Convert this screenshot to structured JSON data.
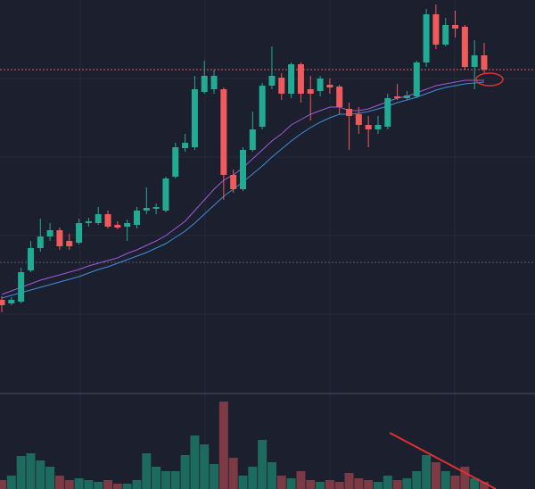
{
  "chart_data": {
    "type": "candlestick",
    "categories": [
      null,
      null,
      null,
      null,
      null,
      null,
      null,
      null,
      null,
      null,
      null,
      null,
      null,
      null,
      null,
      null,
      null,
      null,
      null,
      null,
      null,
      null,
      null,
      null,
      null,
      null,
      null,
      null,
      null,
      null,
      null,
      null,
      null,
      null,
      null,
      null,
      null,
      null,
      null,
      null,
      null,
      null,
      null,
      null,
      null,
      null,
      null,
      null,
      null,
      null,
      null
    ],
    "open": [
      104,
      100,
      102,
      137,
      162,
      175,
      182,
      170,
      168,
      190,
      190,
      200,
      188,
      186,
      188,
      204,
      206,
      204,
      242,
      274,
      275,
      337,
      340,
      340,
      244,
      228,
      272,
      298,
      344,
      353,
      335,
      368,
      340,
      338,
      345,
      343,
      318,
      312,
      300,
      295,
      298,
      332,
      330,
      332,
      370,
      424,
      390,
      412,
      410,
      365,
      378
    ],
    "high": [
      108,
      107,
      140,
      170,
      195,
      190,
      185,
      178,
      195,
      196,
      208,
      204,
      192,
      194,
      208,
      230,
      212,
      242,
      280,
      290,
      355,
      372,
      362,
      342,
      250,
      275,
      315,
      347,
      388,
      358,
      370,
      370,
      355,
      355,
      352,
      345,
      325,
      320,
      310,
      310,
      335,
      346,
      338,
      372,
      430,
      435,
      420,
      428,
      412,
      395,
      392
    ],
    "low": [
      90,
      98,
      100,
      135,
      158,
      170,
      160,
      160,
      166,
      186,
      188,
      184,
      183,
      170,
      184,
      200,
      200,
      202,
      240,
      270,
      272,
      335,
      335,
      216,
      224,
      226,
      270,
      295,
      340,
      328,
      330,
      325,
      305,
      332,
      335,
      312,
      272,
      290,
      275,
      290,
      295,
      328,
      328,
      330,
      365,
      385,
      388,
      398,
      362,
      340,
      358
    ],
    "close": [
      98,
      104,
      135,
      162,
      175,
      182,
      164,
      164,
      190,
      192,
      200,
      186,
      185,
      190,
      204,
      207,
      208,
      240,
      275,
      280,
      340,
      355,
      355,
      244,
      228,
      272,
      295,
      344,
      355,
      335,
      368,
      335,
      335,
      352,
      342,
      320,
      310,
      300,
      295,
      300,
      330,
      330,
      333,
      370,
      424,
      390,
      412,
      408,
      365,
      378,
      362
    ],
    "up_color": "#22ab94",
    "down_color": "#f05a5a",
    "ylim": [
      0,
      440
    ],
    "series": [
      {
        "color": "#a05ad8",
        "values": [
          110,
          114,
          118,
          122,
          126,
          129,
          132,
          135,
          138,
          142,
          145,
          148,
          151,
          156,
          160,
          165,
          170,
          176,
          184,
          192,
          204,
          216,
          228,
          238,
          244,
          252,
          262,
          272,
          282,
          290,
          300,
          306,
          312,
          316,
          320,
          320,
          316,
          316,
          318,
          322,
          326,
          330,
          332,
          336,
          340,
          344,
          346,
          348,
          350,
          350,
          350
        ]
      },
      {
        "color": "#3f8fd8",
        "values": [
          106,
          109,
          112,
          115,
          118,
          121,
          124,
          127,
          130,
          134,
          138,
          141,
          145,
          149,
          153,
          157,
          162,
          167,
          174,
          181,
          190,
          200,
          210,
          220,
          228,
          236,
          245,
          254,
          264,
          273,
          282,
          290,
          297,
          303,
          308,
          312,
          312,
          313,
          315,
          318,
          321,
          325,
          328,
          331,
          335,
          339,
          342,
          344,
          346,
          347,
          348
        ]
      }
    ],
    "hlines": [
      {
        "value": 362,
        "color": "#d9605a"
      },
      {
        "value": 146,
        "color": "#5a5e70"
      }
    ],
    "volume": {
      "ylim": [
        0,
        100
      ],
      "up_color": "#1d6b5e",
      "down_color": "#7b3a44",
      "values": [
        10,
        15,
        37,
        40,
        32,
        25,
        15,
        10,
        12,
        10,
        8,
        10,
        6,
        6,
        10,
        40,
        25,
        20,
        20,
        38,
        60,
        50,
        28,
        98,
        35,
        15,
        25,
        55,
        30,
        15,
        12,
        20,
        10,
        8,
        10,
        8,
        18,
        12,
        10,
        8,
        15,
        10,
        12,
        20,
        38,
        30,
        20,
        15,
        25,
        12,
        8
      ]
    }
  }
}
